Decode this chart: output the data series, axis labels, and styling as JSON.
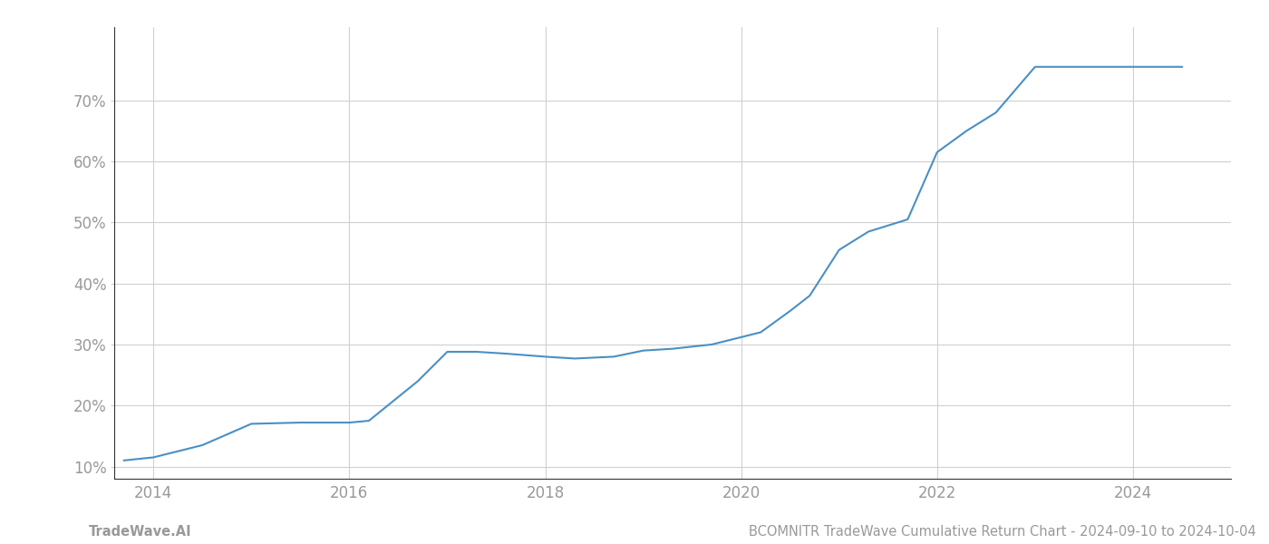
{
  "x_values": [
    2013.7,
    2014.0,
    2014.5,
    2015.0,
    2015.5,
    2016.0,
    2016.2,
    2016.7,
    2017.0,
    2017.3,
    2017.6,
    2018.0,
    2018.3,
    2018.7,
    2019.0,
    2019.3,
    2019.7,
    2020.0,
    2020.2,
    2020.5,
    2020.7,
    2021.0,
    2021.3,
    2021.7,
    2022.0,
    2022.3,
    2022.6,
    2023.0,
    2023.3,
    2023.7,
    2024.0,
    2024.5
  ],
  "y_values": [
    11.0,
    11.5,
    13.5,
    17.0,
    17.2,
    17.2,
    17.5,
    24.0,
    28.8,
    28.8,
    28.5,
    28.0,
    27.7,
    28.0,
    29.0,
    29.3,
    30.0,
    31.2,
    32.0,
    35.5,
    38.0,
    45.5,
    48.5,
    50.5,
    61.5,
    65.0,
    68.0,
    75.5,
    75.5,
    75.5,
    75.5,
    75.5
  ],
  "line_color": "#4a90c4",
  "line_width": 1.5,
  "background_color": "#ffffff",
  "grid_color": "#d0d0d0",
  "xlim": [
    2013.6,
    2025.0
  ],
  "ylim": [
    8,
    82
  ],
  "yticks": [
    10,
    20,
    30,
    40,
    50,
    60,
    70
  ],
  "xticks": [
    2014,
    2016,
    2018,
    2020,
    2022,
    2024
  ],
  "tick_label_color": "#999999",
  "footer_left": "TradeWave.AI",
  "footer_right": "BCOMNITR TradeWave Cumulative Return Chart - 2024-09-10 to 2024-10-04",
  "footer_fontsize": 10.5,
  "tick_fontsize": 12,
  "left_spine_color": "#333333",
  "bottom_spine_color": "#333333"
}
